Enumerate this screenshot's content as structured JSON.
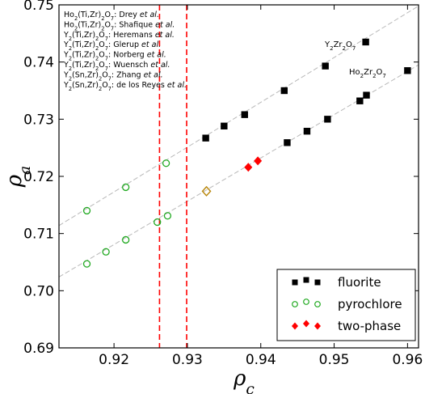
{
  "chart_data": {
    "type": "scatter",
    "xlabel": "ρc",
    "ylabel": "ρa",
    "xlim": [
      0.9125,
      0.9615
    ],
    "ylim": [
      0.69,
      0.75
    ],
    "xticks": [
      "0.92",
      "0.93",
      "0.94",
      "0.95",
      "0.96"
    ],
    "yticks": [
      "0.69",
      "0.70",
      "0.71",
      "0.72",
      "0.73",
      "0.74",
      "0.75"
    ],
    "grid": false,
    "legend_position": "bottom-right",
    "series": [
      {
        "name": "fluorite",
        "marker": "square",
        "color": "#000000",
        "x": [
          0.9325,
          0.935,
          0.9378,
          0.9432,
          0.9488,
          0.9543,
          0.9436,
          0.9463,
          0.9491,
          0.9535,
          0.9544,
          0.96
        ],
        "y": [
          0.7267,
          0.7288,
          0.7308,
          0.735,
          0.7393,
          0.7435,
          0.7259,
          0.7279,
          0.73,
          0.7332,
          0.7342,
          0.7385
        ]
      },
      {
        "name": "pyrochlore",
        "marker": "open-circle",
        "color": "#22aa22",
        "x": [
          0.9163,
          0.9216,
          0.9271,
          0.9163,
          0.9189,
          0.9216,
          0.9259,
          0.9273
        ],
        "y": [
          0.714,
          0.7181,
          0.7223,
          0.7047,
          0.7068,
          0.7089,
          0.712,
          0.7131
        ]
      },
      {
        "name": "two-phase",
        "marker": "diamond",
        "color": "#ff0000",
        "x": [
          0.9383,
          0.9396
        ],
        "y": [
          0.7216,
          0.7227
        ]
      },
      {
        "name": "",
        "marker": "open-diamond",
        "color": "#b8860b",
        "x": [
          0.9326
        ],
        "y": [
          0.7174
        ]
      }
    ],
    "trend_lines": [
      {
        "label": "Y2Zr2O7",
        "x": [
          0.9125,
          0.9615
        ],
        "y": [
          0.7114,
          0.7498
        ]
      },
      {
        "label": "Ho2Zr2O7",
        "x": [
          0.9125,
          0.9615
        ],
        "y": [
          0.7024,
          0.7395
        ]
      }
    ],
    "vertical_lines": [
      {
        "x": 0.9262,
        "color": "#ff0000",
        "style": "dashed"
      },
      {
        "x": 0.9299,
        "color": "#ff0000",
        "style": "dashed"
      }
    ],
    "series_labels": [
      {
        "base": "Y",
        "s1": "2",
        "mid": "Zr",
        "s2": "2",
        "end": "O",
        "s3": "7"
      },
      {
        "base": "Ho",
        "s1": "2",
        "mid": "Zr",
        "s2": "2",
        "end": "O",
        "s3": "7"
      }
    ],
    "annotations": [
      {
        "base": "Ho",
        "s1": "2",
        "mid": "(Ti,Zr)",
        "s2": "2",
        "end": "O",
        "s3": "7",
        "rest": ": Drey ",
        "ital": "et al."
      },
      {
        "base": "Ho",
        "s1": "2",
        "mid": "(Ti,Zr)",
        "s2": "2",
        "end": "O",
        "s3": "7",
        "rest": ": Shafique ",
        "ital": "et al."
      },
      {
        "base": "Y",
        "s1": "2",
        "mid": "(Ti,Zr)",
        "s2": "2",
        "end": "O",
        "s3": "7",
        "rest": ": Heremans ",
        "ital": "et al."
      },
      {
        "base": "Y",
        "s1": "2",
        "mid": "(Ti,Zr)",
        "s2": "2",
        "end": "O",
        "s3": "7",
        "rest": ": Glerup ",
        "ital": "et al."
      },
      {
        "base": "Y",
        "s1": "2",
        "mid": "(Ti,Zr)",
        "s2": "2",
        "end": "O",
        "s3": "7",
        "rest": ": Norberg ",
        "ital": "et al."
      },
      {
        "base": "Y",
        "s1": "2",
        "mid": "(Ti,Zr)",
        "s2": "2",
        "end": "O",
        "s3": "7",
        "rest": ": Wuensch ",
        "ital": "et al."
      },
      {
        "base": "Y",
        "s1": "2",
        "mid": "(Sn,Zr)",
        "s2": "2",
        "end": "O",
        "s3": "7",
        "rest": ": Zhang ",
        "ital": "et al."
      },
      {
        "base": "Y",
        "s1": "2",
        "mid": "(Sn,Zr)",
        "s2": "2",
        "end": "O",
        "s3": "7",
        "rest": ": de los Reyes ",
        "ital": "et al."
      }
    ],
    "axis_titles": {
      "x": {
        "base": "ρ",
        "sub": "c"
      },
      "y": {
        "base": "ρ",
        "sub": "a"
      }
    }
  }
}
